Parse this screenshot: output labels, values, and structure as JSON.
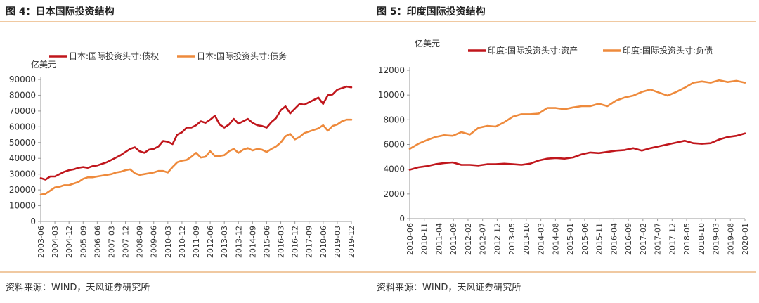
{
  "figures": [
    {
      "id": "left",
      "title": "图 4：日本国际投资结构",
      "source": "资料来源：WIND，天风证券研究所",
      "chart_data": {
        "type": "line",
        "title": "图 4：日本国际投资结构",
        "ylabel": "亿美元",
        "xlabel": "",
        "ylim": [
          0,
          90000
        ],
        "yticks": [
          0,
          10000,
          20000,
          30000,
          40000,
          50000,
          60000,
          70000,
          80000,
          90000
        ],
        "legend_position": "top",
        "grid": false,
        "x_tick_labels": [
          "2003-06",
          "2004-03",
          "2004-12",
          "2005-09",
          "2006-06",
          "2007-03",
          "2007-12",
          "2008-09",
          "2009-06",
          "2010-03",
          "2010-12",
          "2011-09",
          "2012-06",
          "2013-03",
          "2013-12",
          "2014-09",
          "2015-06",
          "2016-03",
          "2016-12",
          "2017-09",
          "2018-06",
          "2019-03",
          "2019-12"
        ],
        "x_point_count": 67,
        "series": [
          {
            "name": "日本:国际投资头寸:债权",
            "color": "#c0161c",
            "values": [
              27500,
              26500,
              28500,
              28500,
              30000,
              31500,
              32500,
              33000,
              34000,
              34500,
              34000,
              35000,
              35500,
              36500,
              37500,
              39000,
              40500,
              42000,
              44000,
              46000,
              47000,
              44500,
              43500,
              45500,
              46000,
              47500,
              51000,
              50500,
              49000,
              55000,
              56500,
              59500,
              59500,
              61000,
              63500,
              62500,
              64500,
              67000,
              61500,
              59500,
              61500,
              65000,
              62000,
              63500,
              65000,
              62500,
              61000,
              60500,
              59500,
              63000,
              65500,
              70500,
              73000,
              68500,
              71500,
              74500,
              74000,
              75500,
              77000,
              78500,
              74500,
              80000,
              80500,
              83500,
              84500,
              85500,
              85000
            ]
          },
          {
            "name": "日本:国际投资头寸:债务",
            "color": "#ee8a3c",
            "values": [
              17000,
              17500,
              19500,
              21500,
              22000,
              23000,
              23000,
              24000,
              25000,
              27000,
              28000,
              28000,
              28500,
              29000,
              29500,
              30000,
              31000,
              31500,
              32500,
              33000,
              30500,
              29500,
              30000,
              30500,
              31000,
              32000,
              32000,
              31000,
              34500,
              37500,
              38500,
              39000,
              41000,
              43500,
              40500,
              41000,
              44500,
              41500,
              41500,
              42000,
              44500,
              46000,
              43500,
              45500,
              46500,
              45000,
              46000,
              45500,
              44000,
              46000,
              47500,
              50000,
              54000,
              55500,
              52000,
              53500,
              56000,
              57000,
              58000,
              59000,
              61000,
              57500,
              60500,
              61500,
              63500,
              64500,
              64500
            ]
          }
        ]
      }
    },
    {
      "id": "right",
      "title": "图 5：印度国际投资结构",
      "source": "资料来源：WIND，天风证券研究所",
      "chart_data": {
        "type": "line",
        "title": "图 5：印度国际投资结构",
        "ylabel": "亿美元",
        "xlabel": "",
        "ylim": [
          0,
          12000
        ],
        "yticks": [
          0,
          2000,
          4000,
          6000,
          8000,
          10000,
          12000
        ],
        "legend_position": "top",
        "grid": false,
        "x_tick_labels": [
          "2010-06",
          "2010-11",
          "2011-04",
          "2011-09",
          "2012-02",
          "2012-07",
          "2012-12",
          "2013-05",
          "2013-10",
          "2014-03",
          "2014-08",
          "2015-01",
          "2015-06",
          "2015-11",
          "2016-04",
          "2016-09",
          "2017-02",
          "2017-07",
          "2017-12",
          "2018-05",
          "2018-10",
          "2019-03",
          "2019-08",
          "2020-01"
        ],
        "x_point_count": 40,
        "series": [
          {
            "name": "印度:国际投资头寸:资产",
            "color": "#c0161c",
            "values": [
              3950,
              4150,
              4250,
              4400,
              4500,
              4550,
              4350,
              4350,
              4300,
              4400,
              4400,
              4450,
              4400,
              4350,
              4450,
              4700,
              4850,
              4900,
              4850,
              4950,
              5200,
              5350,
              5300,
              5400,
              5500,
              5550,
              5700,
              5500,
              5700,
              5850,
              6000,
              6150,
              6300,
              6100,
              6050,
              6100,
              6400,
              6600,
              6700,
              6900
            ]
          },
          {
            "name": "印度:国际投资头寸:负债",
            "color": "#ee8a3c",
            "values": [
              5650,
              6050,
              6350,
              6600,
              6750,
              6700,
              7000,
              6800,
              7350,
              7500,
              7450,
              7800,
              8250,
              8450,
              8450,
              8500,
              8950,
              8950,
              8850,
              9000,
              9100,
              9100,
              9300,
              9100,
              9550,
              9800,
              9950,
              10250,
              10450,
              10200,
              9950,
              10250,
              10600,
              11000,
              11100,
              11000,
              11200,
              11050,
              11150,
              11000
            ]
          }
        ]
      }
    }
  ]
}
